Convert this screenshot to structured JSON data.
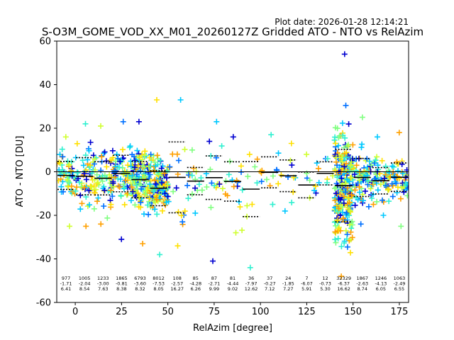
{
  "chart_data": {
    "type": "scatter",
    "plot_date": "Plot date: 2026-01-28 12:14:21",
    "title": "S-O3M_GOME_VOD_XX_M01_20260127Z Gridded ATO - NTO vs RelAzim",
    "xlabel": "RelAzim [degree]",
    "ylabel": "ATO - NTO [DU]",
    "xlim": [
      -10,
      180
    ],
    "ylim": [
      -60,
      60
    ],
    "xticks": [
      0,
      25,
      50,
      75,
      100,
      125,
      150,
      175
    ],
    "yticks": [
      -60,
      -40,
      -20,
      0,
      20,
      40,
      60
    ],
    "grid": false,
    "marker": "+",
    "palette": [
      "#0000d0",
      "#0070ff",
      "#00c8ff",
      "#30f0d0",
      "#80ff80",
      "#d0ff30",
      "#ffe000",
      "#ffa000"
    ],
    "bins": [
      {
        "x": -5,
        "count": "977",
        "mean": "-1.71",
        "std": "6.41",
        "ymin": -25,
        "ymax": 16
      },
      {
        "x": 5,
        "count": "1005",
        "mean": "-2.04",
        "std": "8.54",
        "ymin": -25,
        "ymax": 22
      },
      {
        "x": 15,
        "count": "1233",
        "mean": "-3.00",
        "std": "7.63",
        "ymin": -24,
        "ymax": 21
      },
      {
        "x": 25,
        "count": "1865",
        "mean": "-0.81",
        "std": "8.38",
        "ymin": -31,
        "ymax": 23
      },
      {
        "x": 35,
        "count": "6793",
        "mean": "-3.60",
        "std": "8.32",
        "ymin": -33,
        "ymax": 23
      },
      {
        "x": 45,
        "count": "8012",
        "mean": "-7.53",
        "std": "8.05",
        "ymin": -38,
        "ymax": 33
      },
      {
        "x": 55,
        "count": "108",
        "mean": "-2.57",
        "std": "16.27",
        "ymin": -34,
        "ymax": 33
      },
      {
        "x": 65,
        "count": "85",
        "mean": "-4.28",
        "std": "6.26",
        "ymin": -19,
        "ymax": 10
      },
      {
        "x": 75,
        "count": "87",
        "mean": "-2.71",
        "std": "9.99",
        "ymin": -41,
        "ymax": 23
      },
      {
        "x": 85,
        "count": "81",
        "mean": "-4.44",
        "std": "9.02",
        "ymin": -28,
        "ymax": 16
      },
      {
        "x": 95,
        "count": "36",
        "mean": "-7.97",
        "std": "12.62",
        "ymin": -44,
        "ymax": 8
      },
      {
        "x": 105,
        "count": "37",
        "mean": "-0.27",
        "std": "7.12",
        "ymin": -15,
        "ymax": 17
      },
      {
        "x": 115,
        "count": "24",
        "mean": "-1.85",
        "std": "7.27",
        "ymin": -18,
        "ymax": 13
      },
      {
        "x": 125,
        "count": "7",
        "mean": "-6.07",
        "std": "5.91",
        "ymin": -12,
        "ymax": 8
      },
      {
        "x": 135,
        "count": "12",
        "mean": "-0.73",
        "std": "5.30",
        "ymin": -5,
        "ymax": 6
      },
      {
        "x": 145,
        "count": "32329",
        "mean": "-6.37",
        "std": "16.62",
        "ymin": -48,
        "ymax": 54
      },
      {
        "x": 155,
        "count": "1867",
        "mean": "-2.63",
        "std": "8.74",
        "ymin": -24,
        "ymax": 25
      },
      {
        "x": 165,
        "count": "1246",
        "mean": "-4.13",
        "std": "6.05",
        "ymin": -20,
        "ymax": 16
      },
      {
        "x": 175,
        "count": "1063",
        "mean": "-2.49",
        "std": "6.55",
        "ymin": -25,
        "ymax": 18
      }
    ]
  }
}
